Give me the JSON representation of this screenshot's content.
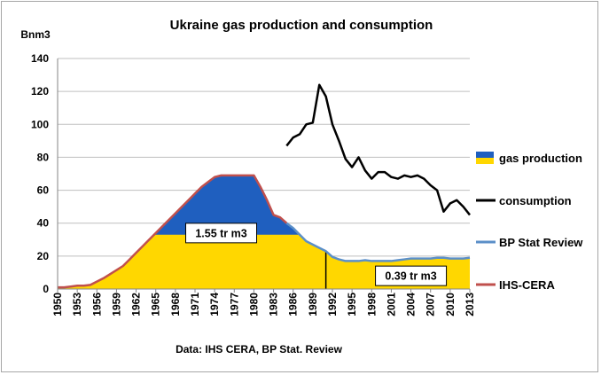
{
  "chart_data": {
    "type": "area",
    "title": "Ukraine gas production and consumption",
    "ylabel": "Bnm3",
    "xlabel": "",
    "source_note": "Data: IHS CERA, BP Stat. Review",
    "ylim": [
      0,
      140
    ],
    "yticks": [
      0,
      20,
      40,
      60,
      80,
      100,
      120,
      140
    ],
    "xlim": [
      1950,
      2013
    ],
    "xticks": [
      1950,
      1953,
      1956,
      1959,
      1962,
      1965,
      1968,
      1971,
      1974,
      1977,
      1980,
      1983,
      1986,
      1989,
      1992,
      1995,
      1998,
      2001,
      2004,
      2007,
      2010,
      2013
    ],
    "grid": "horizontal",
    "legend_position": "right",
    "annotations": [
      {
        "text": "1.55 tr m3",
        "x": 1975,
        "y": 34
      },
      {
        "text": "0.39 tr m3",
        "x": 2004,
        "y": 8
      }
    ],
    "marker_line_year": 1991,
    "plateau_level": 33,
    "colors": {
      "production_upper": "#1f5fbf",
      "production_lower": "#ffd700",
      "consumption": "#000000",
      "bp": "#5b8fc8",
      "ihs": "#c0504d",
      "grid": "#bfbfbf"
    },
    "legend": [
      {
        "key": "production",
        "label": "gas production"
      },
      {
        "key": "consumption",
        "label": "consumption"
      },
      {
        "key": "bp",
        "label": "BP Stat Review"
      },
      {
        "key": "ihs",
        "label": "IHS-CERA"
      }
    ],
    "series": [
      {
        "name": "IHS-CERA",
        "key": "ihs",
        "x": [
          1950,
          1951,
          1952,
          1953,
          1954,
          1955,
          1956,
          1957,
          1958,
          1959,
          1960,
          1961,
          1962,
          1963,
          1964,
          1965,
          1966,
          1967,
          1968,
          1969,
          1970,
          1971,
          1972,
          1973,
          1974,
          1975,
          1976,
          1977,
          1978,
          1979,
          1980,
          1981,
          1982,
          1983,
          1984,
          1985
        ],
        "y": [
          1,
          1,
          1.5,
          2,
          2,
          2.5,
          4.5,
          6.5,
          9,
          11.5,
          14,
          18,
          22,
          26,
          30,
          34,
          38,
          42,
          46,
          50,
          54,
          58,
          62,
          65,
          68,
          69,
          69,
          69,
          69,
          69,
          69,
          62,
          54,
          45,
          43.5,
          40
        ]
      },
      {
        "name": "BP Stat Review",
        "key": "bp",
        "x": [
          1985,
          1986,
          1987,
          1988,
          1989,
          1990,
          1991,
          1992,
          1993,
          1994,
          1995,
          1996,
          1997,
          1998,
          1999,
          2000,
          2001,
          2002,
          2003,
          2004,
          2005,
          2006,
          2007,
          2008,
          2009,
          2010,
          2011,
          2012,
          2013
        ],
        "y": [
          40,
          37,
          33,
          29,
          27,
          25,
          23,
          19.5,
          18,
          17,
          17,
          17,
          17.5,
          17,
          17,
          17,
          17,
          17.5,
          18,
          18.5,
          18.5,
          18.5,
          18.5,
          19,
          19,
          18.5,
          18.5,
          18.5,
          19
        ]
      },
      {
        "name": "consumption",
        "key": "consumption",
        "x": [
          1985,
          1986,
          1987,
          1988,
          1989,
          1990,
          1991,
          1992,
          1993,
          1994,
          1995,
          1996,
          1997,
          1998,
          1999,
          2000,
          2001,
          2002,
          2003,
          2004,
          2005,
          2006,
          2007,
          2008,
          2009,
          2010,
          2011,
          2012,
          2013
        ],
        "y": [
          87,
          92,
          94,
          100,
          101,
          124,
          117,
          100,
          90,
          79,
          74,
          80,
          72,
          67,
          71,
          71,
          68,
          67,
          69,
          68,
          69,
          67,
          63,
          60,
          47,
          52,
          54,
          50,
          45
        ]
      }
    ]
  }
}
